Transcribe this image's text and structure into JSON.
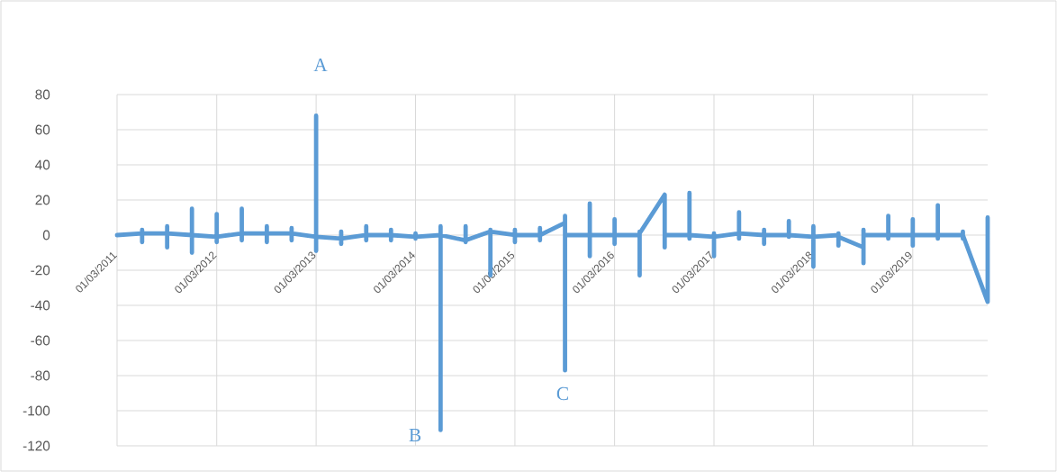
{
  "chart_data": {
    "type": "line",
    "x": [
      "2011-03-01",
      "2011-06-01",
      "2011-06-01",
      "2011-06-01",
      "2011-06-01",
      "2011-09-01",
      "2011-09-01",
      "2011-09-01",
      "2011-09-01",
      "2011-12-01",
      "2011-12-01",
      "2011-12-01",
      "2011-12-01",
      "2012-03-01",
      "2012-03-01",
      "2012-03-01",
      "2012-03-01",
      "2012-06-01",
      "2012-06-01",
      "2012-06-01",
      "2012-06-01",
      "2012-09-01",
      "2012-09-01",
      "2012-09-01",
      "2012-09-01",
      "2012-12-01",
      "2012-12-01",
      "2012-12-01",
      "2012-12-01",
      "2013-03-01",
      "2013-03-01",
      "2013-03-01",
      "2013-03-01",
      "2013-06-01",
      "2013-06-01",
      "2013-06-01",
      "2013-06-01",
      "2013-09-01",
      "2013-09-01",
      "2013-09-01",
      "2013-09-01",
      "2013-12-01",
      "2013-12-01",
      "2013-12-01",
      "2013-12-01",
      "2014-03-01",
      "2014-03-01",
      "2014-03-01",
      "2014-03-01",
      "2014-06-01",
      "2014-06-01",
      "2014-06-01",
      "2014-06-01",
      "2014-09-01",
      "2014-09-01",
      "2014-09-01",
      "2014-09-01",
      "2014-12-01",
      "2014-12-01",
      "2014-12-01",
      "2014-12-01",
      "2015-03-01",
      "2015-03-01",
      "2015-03-01",
      "2015-03-01",
      "2015-06-01",
      "2015-06-01",
      "2015-06-01",
      "2015-06-01",
      "2015-09-01",
      "2015-09-01",
      "2015-09-01",
      "2015-09-01",
      "2015-12-01",
      "2015-12-01",
      "2015-12-01",
      "2015-12-01",
      "2016-03-01",
      "2016-03-01",
      "2016-03-01",
      "2016-03-01",
      "2016-06-01",
      "2016-06-01",
      "2016-06-01",
      "2016-06-01",
      "2016-09-01",
      "2016-09-01",
      "2016-09-01",
      "2016-12-01",
      "2016-12-01",
      "2016-12-01",
      "2016-12-01",
      "2017-03-01",
      "2017-03-01",
      "2017-03-01",
      "2017-03-01",
      "2017-06-01",
      "2017-06-01",
      "2017-06-01",
      "2017-06-01",
      "2017-09-01",
      "2017-09-01",
      "2017-09-01",
      "2017-09-01",
      "2017-12-01",
      "2017-12-01",
      "2017-12-01",
      "2017-12-01",
      "2018-03-01",
      "2018-03-01",
      "2018-03-01",
      "2018-03-01",
      "2018-06-01",
      "2018-06-01",
      "2018-06-01",
      "2018-06-01",
      "2018-09-01",
      "2018-09-01",
      "2018-09-01",
      "2018-09-01",
      "2018-12-01",
      "2018-12-01",
      "2018-12-01",
      "2018-12-01",
      "2019-03-01",
      "2019-03-01",
      "2019-03-01",
      "2019-03-01",
      "2019-06-01",
      "2019-06-01",
      "2019-06-01",
      "2019-06-01",
      "2019-09-01",
      "2019-09-01",
      "2019-09-01",
      "2019-09-01",
      "2019-12-01",
      "2019-12-01"
    ],
    "values": [
      0,
      1,
      3,
      -4,
      1,
      1,
      5,
      -7,
      1,
      0,
      15,
      -10,
      0,
      -1,
      12,
      -4,
      -1,
      1,
      15,
      -3,
      1,
      1,
      5,
      -4,
      1,
      1,
      4,
      -3,
      1,
      -1,
      68,
      -9,
      -1,
      -2,
      2,
      -5,
      -2,
      0,
      5,
      -3,
      0,
      0,
      3,
      -3,
      0,
      -1,
      1,
      -2,
      -1,
      0,
      5,
      -111,
      0,
      -3,
      5,
      -4,
      -3,
      2,
      3,
      -23,
      2,
      0,
      3,
      -4,
      0,
      0,
      4,
      -3,
      0,
      7,
      11,
      -77,
      0,
      0,
      18,
      -12,
      0,
      0,
      9,
      -5,
      0,
      0,
      2,
      -23,
      1,
      23,
      -7,
      0,
      0,
      24,
      -2,
      0,
      -1,
      1,
      -12,
      -1,
      1,
      13,
      -2,
      1,
      0,
      3,
      -5,
      0,
      0,
      8,
      -1,
      0,
      -1,
      5,
      -18,
      -1,
      0,
      1,
      -6,
      -1,
      -7,
      3,
      -16,
      0,
      0,
      11,
      -2,
      0,
      0,
      9,
      -6,
      0,
      0,
      17,
      -2,
      0,
      0,
      2,
      -2,
      0,
      -38,
      10
    ],
    "color": "#5b9bd5",
    "xlim": [
      "2011-03-01",
      "2019-12-01"
    ],
    "xticks": [
      {
        "value": "2011-03-01",
        "label": "01/03/2011"
      },
      {
        "value": "2012-03-01",
        "label": "01/03/2012"
      },
      {
        "value": "2013-03-01",
        "label": "01/03/2013"
      },
      {
        "value": "2014-03-01",
        "label": "01/03/2014"
      },
      {
        "value": "2015-03-01",
        "label": "01/03/2015"
      },
      {
        "value": "2016-03-01",
        "label": "01/03/2016"
      },
      {
        "value": "2017-03-01",
        "label": "01/03/2017"
      },
      {
        "value": "2018-03-01",
        "label": "01/03/2018"
      },
      {
        "value": "2019-03-01",
        "label": "01/03/2019"
      }
    ],
    "ylim": [
      -120,
      80
    ],
    "yticks": [
      -120,
      -100,
      -80,
      -60,
      -40,
      -20,
      0,
      20,
      40,
      60,
      80
    ],
    "grid": true,
    "annotations": [
      "A",
      "B",
      "C"
    ]
  }
}
